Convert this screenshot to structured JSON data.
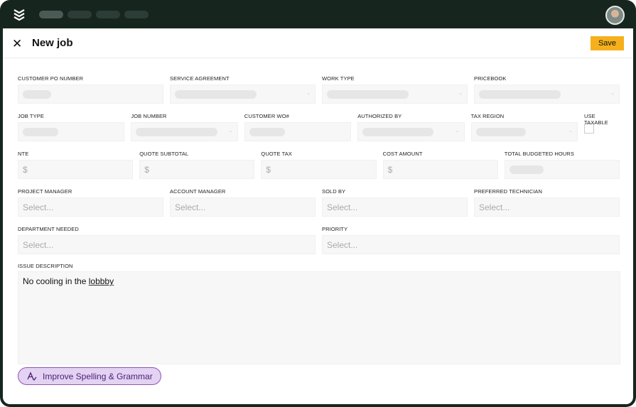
{
  "header": {
    "title": "New job",
    "save_label": "Save"
  },
  "fields": {
    "row1": [
      {
        "label": "CUSTOMER PO NUMBER"
      },
      {
        "label": "SERVICE AGREEMENT"
      },
      {
        "label": "WORK TYPE"
      },
      {
        "label": "PRICEBOOK"
      }
    ],
    "row2": [
      {
        "label": "JOB TYPE"
      },
      {
        "label": "JOB NUMBER"
      },
      {
        "label": "CUSTOMER WO#"
      },
      {
        "label": "AUTHORIZED BY"
      },
      {
        "label": "TAX REGION"
      },
      {
        "label": "USE TAXABLE"
      }
    ],
    "row3": [
      {
        "label": "NTE",
        "value": "$"
      },
      {
        "label": "QUOTE SUBTOTAL",
        "value": "$"
      },
      {
        "label": "QUOTE TAX",
        "value": "$"
      },
      {
        "label": "COST AMOUNT",
        "value": "$"
      },
      {
        "label": "TOTAL BUDGETED HOURS"
      }
    ],
    "row4": [
      {
        "label": "PROJECT MANAGER",
        "placeholder": "Select..."
      },
      {
        "label": "ACCOUNT MANAGER",
        "placeholder": "Select..."
      },
      {
        "label": "SOLD BY",
        "placeholder": "Select..."
      },
      {
        "label": "PREFERRED TECHNICIAN",
        "placeholder": "Select..."
      }
    ],
    "row5": [
      {
        "label": "DEPARTMENT NEEDED",
        "placeholder": "Select..."
      },
      {
        "label": "PRIORITY",
        "placeholder": "Select..."
      }
    ]
  },
  "issue": {
    "label": "ISSUE DESCRIPTION",
    "text_before": "No cooling in the ",
    "misspelled": "lobbby"
  },
  "ai_button": {
    "label": "Improve Spelling & Grammar",
    "icon": "spellcheck-icon"
  },
  "colors": {
    "accent": "#f5b01c",
    "frame": "#17251f",
    "ai": "#e4d2f2"
  }
}
